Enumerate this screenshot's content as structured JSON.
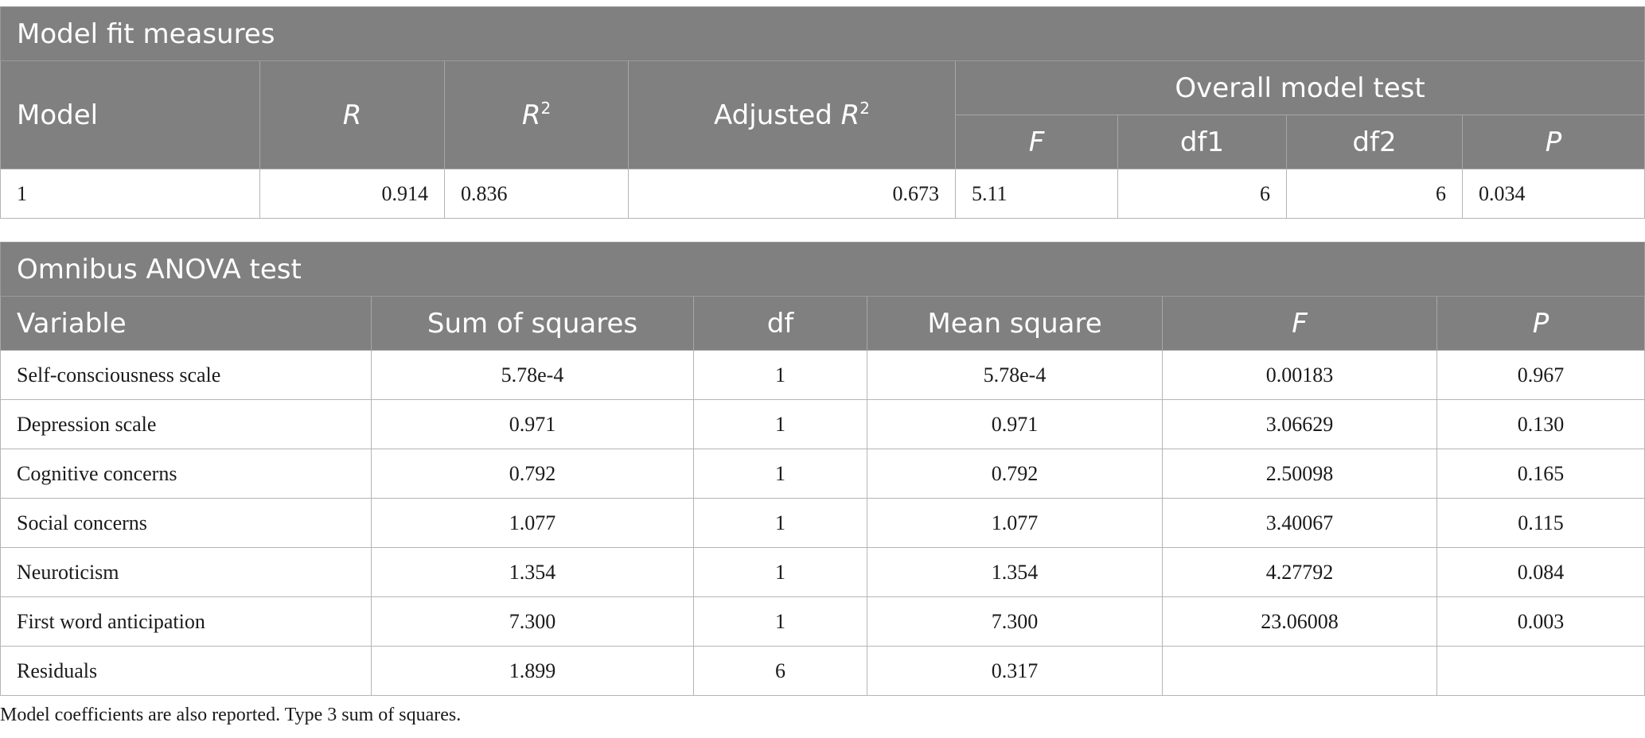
{
  "model_fit": {
    "title": "Model fit measures",
    "headers": {
      "model": "Model",
      "r": "R",
      "r2_base": "R",
      "r2_sup": "2",
      "adj_prefix": "Adjusted ",
      "adj_base": "R",
      "adj_sup": "2",
      "overall": "Overall model test",
      "f": "F",
      "df1": "df1",
      "df2": "df2",
      "p": "P"
    },
    "row": {
      "model": "1",
      "r": "0.914",
      "r2": "0.836",
      "adj_r2": "0.673",
      "f": "5.11",
      "df1": "6",
      "df2": "6",
      "p": "0.034"
    }
  },
  "anova": {
    "title": "Omnibus ANOVA test",
    "headers": [
      "Variable",
      "Sum of squares",
      "df",
      "Mean square",
      "F",
      "P"
    ],
    "rows": [
      [
        "Self-consciousness scale",
        "5.78e-4",
        "1",
        "5.78e-4",
        "0.00183",
        "0.967"
      ],
      [
        "Depression scale",
        "0.971",
        "1",
        "0.971",
        "3.06629",
        "0.130"
      ],
      [
        "Cognitive concerns",
        "0.792",
        "1",
        "0.792",
        "2.50098",
        "0.165"
      ],
      [
        "Social concerns",
        "1.077",
        "1",
        "1.077",
        "3.40067",
        "0.115"
      ],
      [
        "Neuroticism",
        "1.354",
        "1",
        "1.354",
        "4.27792",
        "0.084"
      ],
      [
        "First word anticipation",
        "7.300",
        "1",
        "7.300",
        "23.06008",
        "0.003"
      ],
      [
        "Residuals",
        "1.899",
        "6",
        "0.317",
        "",
        ""
      ]
    ]
  },
  "note": "Model coefficients are also reported. Type 3 sum of squares."
}
